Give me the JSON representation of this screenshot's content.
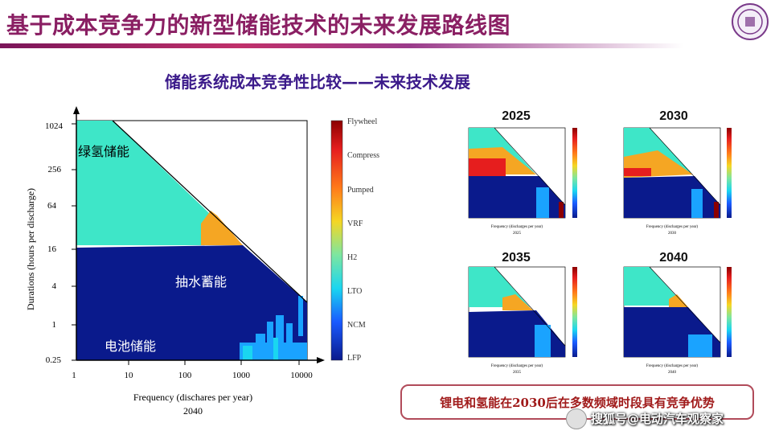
{
  "slide": {
    "title": "基于成本竞争力的新型储能技术的未来发展路线图",
    "subtitle": "储能系统成本竞争性比较——未来技术发展",
    "conclusion": "锂电和氢能在2030后在多数频域时段具有竞争优势",
    "watermark": "搜狐号@电动汽车观察家",
    "logo_icon": "university-seal-icon"
  },
  "main_chart": {
    "xlabel": "Frequency (dischares per year)",
    "ylabel": "Durations (hours per discharge)",
    "year": "2040",
    "x_ticks": [
      "1",
      "10",
      "100",
      "1000",
      "10000"
    ],
    "y_ticks": [
      "0.25",
      "1",
      "4",
      "16",
      "64",
      "256",
      "1024"
    ],
    "region_labels": {
      "hydrogen": "绿氢储能",
      "pumped": "抽水蓄能",
      "battery": "电池储能"
    },
    "legend": [
      "Flywheel",
      "Compress",
      "Pumped",
      "VRF",
      "H2",
      "LTO",
      "NCM",
      "LFP"
    ],
    "colors": {
      "hydrogen": "#3ee6c8",
      "lfp": "#0a1a8c",
      "vrf": "#f5a623",
      "ncm": "#1aa3ff",
      "lto": "#1ad6f0",
      "compress": "#e61e1e"
    }
  },
  "mini_charts": [
    {
      "year": "2025",
      "caption": "2025"
    },
    {
      "year": "2030",
      "caption": "2030"
    },
    {
      "year": "2035",
      "caption": "2035"
    },
    {
      "year": "2040",
      "caption": "2040"
    }
  ]
}
